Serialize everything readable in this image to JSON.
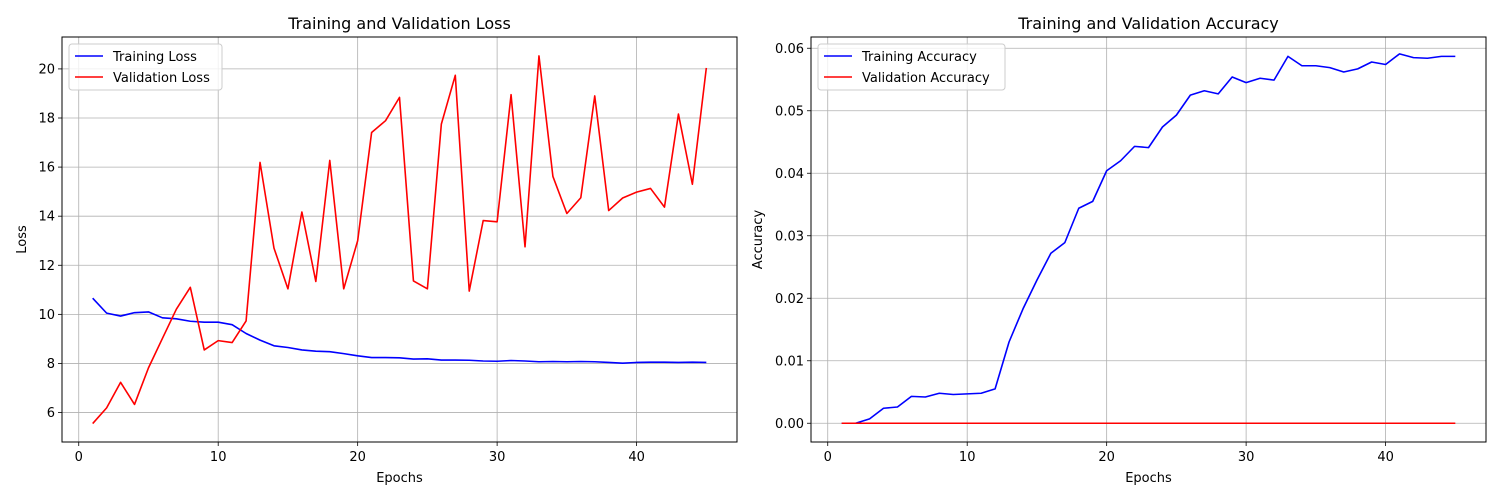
{
  "chart_data": [
    {
      "type": "line",
      "title": "Training and Validation Loss",
      "xlabel": "Epochs",
      "ylabel": "Loss",
      "xlim": [
        -1.2,
        47.2
      ],
      "ylim": [
        4.8,
        21.3
      ],
      "xticks": [
        0,
        10,
        20,
        30,
        40
      ],
      "yticks": [
        6,
        8,
        10,
        12,
        14,
        16,
        18,
        20
      ],
      "grid": true,
      "legend_position": "top-left",
      "x": [
        1,
        2,
        3,
        4,
        5,
        6,
        7,
        8,
        9,
        10,
        11,
        12,
        13,
        14,
        15,
        16,
        17,
        18,
        19,
        20,
        21,
        22,
        23,
        24,
        25,
        26,
        27,
        28,
        29,
        30,
        31,
        32,
        33,
        34,
        35,
        36,
        37,
        38,
        39,
        40,
        41,
        42,
        43,
        44,
        45
      ],
      "series": [
        {
          "name": "Training Loss",
          "color": "#0000ff",
          "values": [
            10.66,
            10.05,
            9.93,
            10.07,
            10.1,
            9.86,
            9.82,
            9.72,
            9.68,
            9.68,
            9.58,
            9.22,
            8.95,
            8.72,
            8.65,
            8.55,
            8.5,
            8.48,
            8.4,
            8.31,
            8.24,
            8.24,
            8.23,
            8.18,
            8.19,
            8.14,
            8.14,
            8.13,
            8.1,
            8.09,
            8.12,
            8.1,
            8.07,
            8.08,
            8.07,
            8.08,
            8.07,
            8.04,
            8.01,
            8.04,
            8.05,
            8.05,
            8.04,
            8.05,
            8.04
          ]
        },
        {
          "name": "Validation Loss",
          "color": "#ff0000",
          "values": [
            5.55,
            6.19,
            7.23,
            6.33,
            7.82,
            9.02,
            10.21,
            11.1,
            8.55,
            8.93,
            8.85,
            9.73,
            16.19,
            12.7,
            11.04,
            14.17,
            11.34,
            16.27,
            11.04,
            13.0,
            17.41,
            17.89,
            18.84,
            11.36,
            11.04,
            17.75,
            19.74,
            10.95,
            13.82,
            13.77,
            18.95,
            12.75,
            20.53,
            15.62,
            14.11,
            14.75,
            18.9,
            14.23,
            14.74,
            14.98,
            15.13,
            14.37,
            18.16,
            15.3,
            20.04
          ]
        }
      ]
    },
    {
      "type": "line",
      "title": "Training and Validation Accuracy",
      "xlabel": "Epochs",
      "ylabel": "Accuracy",
      "xlim": [
        -1.2,
        47.2
      ],
      "ylim": [
        -0.003,
        0.0618
      ],
      "xticks": [
        0,
        10,
        20,
        30,
        40
      ],
      "yticks": [
        0.0,
        0.01,
        0.02,
        0.03,
        0.04,
        0.05,
        0.06
      ],
      "ytick_labels": [
        "0.00",
        "0.01",
        "0.02",
        "0.03",
        "0.04",
        "0.05",
        "0.06"
      ],
      "grid": true,
      "legend_position": "top-left",
      "x": [
        1,
        2,
        3,
        4,
        5,
        6,
        7,
        8,
        9,
        10,
        11,
        12,
        13,
        14,
        15,
        16,
        17,
        18,
        19,
        20,
        21,
        22,
        23,
        24,
        25,
        26,
        27,
        28,
        29,
        30,
        31,
        32,
        33,
        34,
        35,
        36,
        37,
        38,
        39,
        40,
        41,
        42,
        43,
        44,
        45
      ],
      "series": [
        {
          "name": "Training Accuracy",
          "color": "#0000ff",
          "values": [
            0.0,
            0.0,
            0.0007,
            0.0024,
            0.0026,
            0.0043,
            0.0042,
            0.0048,
            0.0046,
            0.0047,
            0.0048,
            0.0055,
            0.013,
            0.0183,
            0.0229,
            0.0272,
            0.0289,
            0.0344,
            0.0355,
            0.0404,
            0.042,
            0.0443,
            0.0441,
            0.0474,
            0.0493,
            0.0525,
            0.0532,
            0.0527,
            0.0554,
            0.0545,
            0.0552,
            0.0549,
            0.0587,
            0.0572,
            0.0572,
            0.0569,
            0.0562,
            0.0567,
            0.0578,
            0.0574,
            0.0591,
            0.0585,
            0.0584,
            0.0587,
            0.0587
          ]
        },
        {
          "name": "Validation Accuracy",
          "color": "#ff0000",
          "values": [
            0,
            0,
            0,
            0,
            0,
            0,
            0,
            0,
            0,
            0,
            0,
            0,
            0,
            0,
            0,
            0,
            0,
            0,
            0,
            0,
            0,
            0,
            0,
            0,
            0,
            0,
            0,
            0,
            0,
            0,
            0,
            0,
            0,
            0,
            0,
            0,
            0,
            0,
            0,
            0,
            0,
            0,
            0,
            0,
            0
          ]
        }
      ]
    }
  ]
}
